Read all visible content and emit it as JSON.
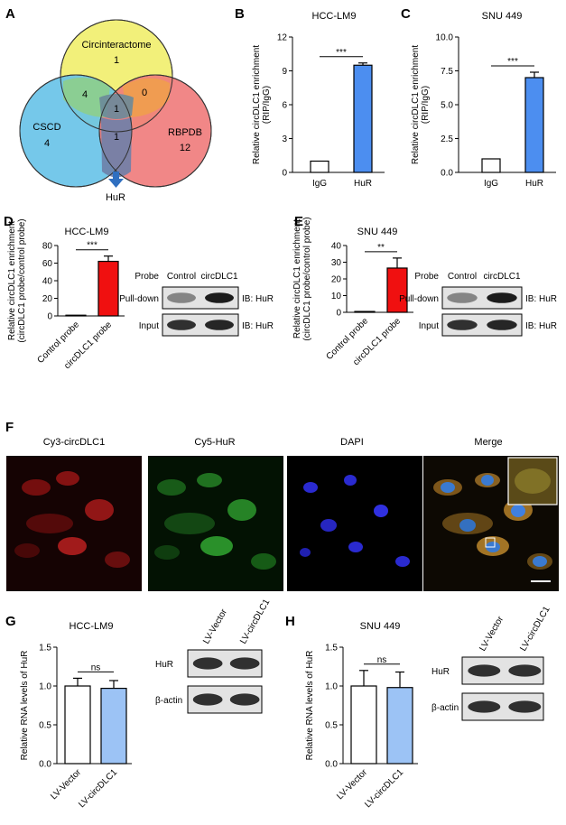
{
  "panelA": {
    "letter": "A",
    "sets": [
      {
        "name": "Circinteractome",
        "count": "1",
        "color": "#f2f07a"
      },
      {
        "name": "CSCD",
        "count": "4",
        "color": "#66c2e8"
      },
      {
        "name": "RBPDB",
        "count": "12",
        "color": "#f07a7a"
      }
    ],
    "overlaps": {
      "circ_cscd": "4",
      "circ_rbpdb": "0",
      "all": "1",
      "cscd_rbpdb": "1"
    },
    "arrow_label": "HuR"
  },
  "panelB": {
    "letter": "B",
    "chart_data": {
      "type": "bar",
      "title": "HCC-LM9",
      "ylabel_lines": [
        "Relative circDLC1 enrichment",
        "(RIP/IgG)"
      ],
      "categories": [
        "IgG",
        "HuR"
      ],
      "values": [
        1.0,
        9.5
      ],
      "errors": [
        0,
        0.2
      ],
      "colors": [
        "#ffffff",
        "#4c8ef0"
      ],
      "ylim": [
        0,
        12
      ],
      "yticks": [
        "0",
        "3",
        "6",
        "9",
        "12"
      ],
      "significance": "***"
    }
  },
  "panelC": {
    "letter": "C",
    "chart_data": {
      "type": "bar",
      "title": "SNU 449",
      "ylabel_lines": [
        "Relative circDLC1 enrichment",
        "(RIP/IgG)"
      ],
      "categories": [
        "IgG",
        "HuR"
      ],
      "values": [
        1.0,
        7.0
      ],
      "errors": [
        0,
        0.4
      ],
      "colors": [
        "#ffffff",
        "#4c8ef0"
      ],
      "ylim": [
        0,
        10
      ],
      "yticks": [
        "0.0",
        "2.5",
        "5.0",
        "7.5",
        "10.0"
      ],
      "significance": "***"
    }
  },
  "panelD": {
    "letter": "D",
    "chart_data": {
      "type": "bar",
      "title": "HCC-LM9",
      "ylabel_lines": [
        "Relative circDLC1 enrichment",
        "(circDLC1 probe/control probe)"
      ],
      "categories": [
        "Control probe",
        "circDLC1 probe"
      ],
      "values": [
        0.5,
        62
      ],
      "errors": [
        0,
        6
      ],
      "colors": [
        "#ffffff",
        "#f01010"
      ],
      "ylim": [
        0,
        80
      ],
      "yticks": [
        "0",
        "20",
        "40",
        "60",
        "80"
      ],
      "significance": "***"
    },
    "blot": {
      "probe_label": "Probe",
      "lanes": [
        "Control",
        "circDLC1"
      ],
      "rows": [
        {
          "label": "Pull-down",
          "ib": "IB: HuR"
        },
        {
          "label": "Input",
          "ib": "IB: HuR"
        }
      ]
    }
  },
  "panelE": {
    "letter": "E",
    "chart_data": {
      "type": "bar",
      "title": "SNU 449",
      "ylabel_lines": [
        "Relative circDLC1 enrichment",
        "(circDLC1 probe/control probe)"
      ],
      "categories": [
        "Control probe",
        "circDLC1 probe"
      ],
      "values": [
        0.5,
        26.5
      ],
      "errors": [
        0,
        6
      ],
      "colors": [
        "#ffffff",
        "#f01010"
      ],
      "ylim": [
        0,
        40
      ],
      "yticks": [
        "0",
        "10",
        "20",
        "30",
        "40"
      ],
      "significance": "**"
    },
    "blot": {
      "probe_label": "Probe",
      "lanes": [
        "Control",
        "circDLC1"
      ],
      "rows": [
        {
          "label": "Pull-down",
          "ib": "IB: HuR"
        },
        {
          "label": "Input",
          "ib": "IB: HuR"
        }
      ]
    }
  },
  "panelF": {
    "letter": "F",
    "channels": [
      "Cy3-circDLC1",
      "Cy5-HuR",
      "DAPI",
      "Merge"
    ]
  },
  "panelG": {
    "letter": "G",
    "chart_data": {
      "type": "bar",
      "title": "HCC-LM9",
      "ylabel_lines": [
        "Relative RNA levels of HuR"
      ],
      "categories": [
        "LV-Vector",
        "LV-circDLC1"
      ],
      "values": [
        1.0,
        0.97
      ],
      "errors": [
        0.1,
        0.1
      ],
      "colors": [
        "#ffffff",
        "#9cc3f5"
      ],
      "ylim": [
        0,
        1.5
      ],
      "yticks": [
        "0.0",
        "0.5",
        "1.0",
        "1.5"
      ],
      "significance": "ns"
    },
    "blot": {
      "lanes": [
        "LV-Vector",
        "LV-circDLC1"
      ],
      "rows": [
        {
          "label": "HuR"
        },
        {
          "label": "β-actin"
        }
      ]
    }
  },
  "panelH": {
    "letter": "H",
    "chart_data": {
      "type": "bar",
      "title": "SNU 449",
      "ylabel_lines": [
        "Relative RNA levels of HuR"
      ],
      "categories": [
        "LV-Vector",
        "LV-circDLC1"
      ],
      "values": [
        1.0,
        0.98
      ],
      "errors": [
        0.2,
        0.2
      ],
      "colors": [
        "#ffffff",
        "#9cc3f5"
      ],
      "ylim": [
        0,
        1.5
      ],
      "yticks": [
        "0.0",
        "0.5",
        "1.0",
        "1.5"
      ],
      "significance": "ns"
    },
    "blot": {
      "lanes": [
        "LV-Vector",
        "LV-circDLC1"
      ],
      "rows": [
        {
          "label": "HuR"
        },
        {
          "label": "β-actin"
        }
      ]
    }
  }
}
